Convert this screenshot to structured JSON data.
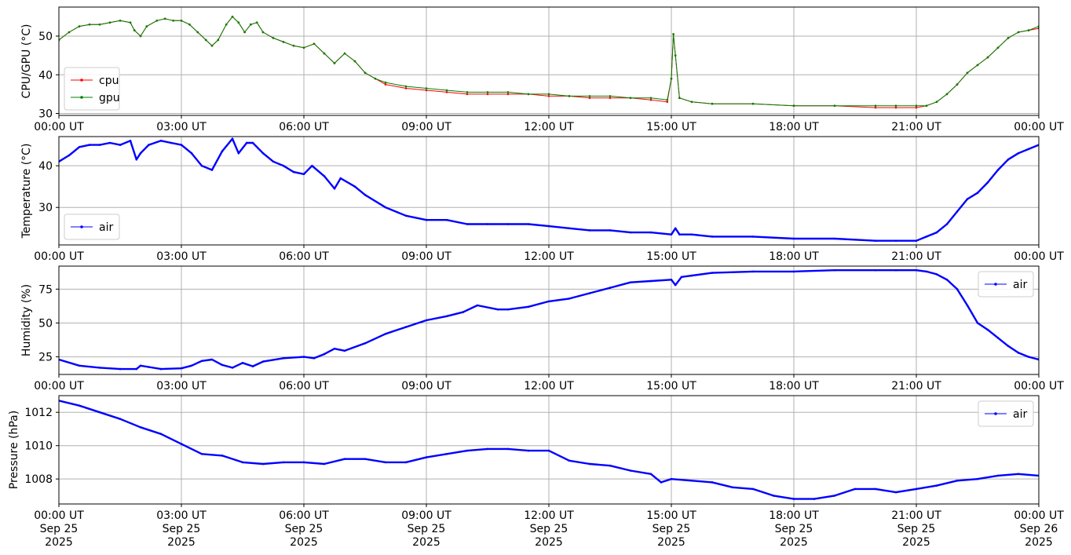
{
  "chart_data": [
    {
      "type": "line",
      "ylabel": "CPU/GPU (°C)",
      "ylim": [
        29.5,
        57.5
      ],
      "yticks": [
        30,
        40,
        50
      ],
      "xlim": [
        "2025-09-25T00:00Z",
        "2025-09-26T00:00Z"
      ],
      "xtick_labels": [
        "00:00 UT",
        "03:00 UT",
        "06:00 UT",
        "09:00 UT",
        "12:00 UT",
        "15:00 UT",
        "18:00 UT",
        "21:00 UT",
        "00:00 UT"
      ],
      "grid": true,
      "legend_position": "lower-left",
      "series": [
        {
          "name": "cpu",
          "color": "#ff0000",
          "x": [
            0,
            0.25,
            0.5,
            0.75,
            1,
            1.25,
            1.5,
            1.75,
            1.85,
            2,
            2.15,
            2.4,
            2.6,
            2.8,
            3,
            3.2,
            3.4,
            3.6,
            3.75,
            3.9,
            4.1,
            4.25,
            4.4,
            4.55,
            4.7,
            4.85,
            5,
            5.25,
            5.5,
            5.75,
            6,
            6.25,
            6.5,
            6.75,
            7,
            7.25,
            7.5,
            7.75,
            8,
            8.5,
            9,
            9.5,
            10,
            10.5,
            11,
            11.5,
            12,
            12.5,
            13,
            13.5,
            14,
            14.5,
            14.9,
            15,
            15.05,
            15.1,
            15.2,
            15.5,
            16,
            17,
            18,
            19,
            20,
            20.5,
            21,
            21.25,
            21.5,
            21.75,
            22,
            22.25,
            22.5,
            22.75,
            23,
            23.25,
            23.5,
            23.75,
            24
          ],
          "y": [
            49,
            51,
            52.5,
            53,
            53,
            53.5,
            54,
            53.5,
            51.5,
            50,
            52.5,
            54,
            54.5,
            54,
            54,
            53,
            51,
            49,
            47.5,
            49,
            53,
            55,
            53.5,
            51,
            53,
            53.5,
            51,
            49.5,
            48.5,
            47.5,
            47,
            48,
            45.5,
            43,
            45.5,
            43.5,
            40.5,
            39,
            37.5,
            36.5,
            36,
            35.5,
            35,
            35,
            35,
            35,
            34.5,
            34.5,
            34,
            34,
            34,
            33.5,
            33,
            39,
            50.5,
            45,
            34,
            33,
            32.5,
            32.5,
            32,
            32,
            31.5,
            31.5,
            31.5,
            32,
            33,
            35,
            37.5,
            40.5,
            42.5,
            44.5,
            47,
            49.5,
            51,
            51.5,
            52
          ]
        },
        {
          "name": "gpu",
          "color": "#008000",
          "x": [
            0,
            0.25,
            0.5,
            0.75,
            1,
            1.25,
            1.5,
            1.75,
            1.85,
            2,
            2.15,
            2.4,
            2.6,
            2.8,
            3,
            3.2,
            3.4,
            3.6,
            3.75,
            3.9,
            4.1,
            4.25,
            4.4,
            4.55,
            4.7,
            4.85,
            5,
            5.25,
            5.5,
            5.75,
            6,
            6.25,
            6.5,
            6.75,
            7,
            7.25,
            7.5,
            7.75,
            8,
            8.5,
            9,
            9.5,
            10,
            10.5,
            11,
            11.5,
            12,
            12.5,
            13,
            13.5,
            14,
            14.5,
            14.9,
            15,
            15.05,
            15.1,
            15.2,
            15.5,
            16,
            17,
            18,
            19,
            20,
            20.5,
            21,
            21.25,
            21.5,
            21.75,
            22,
            22.25,
            22.5,
            22.75,
            23,
            23.25,
            23.5,
            23.75,
            24
          ],
          "y": [
            49,
            51,
            52.5,
            53,
            53,
            53.5,
            54,
            53.5,
            51.5,
            50,
            52.5,
            54,
            54.5,
            54,
            54,
            53,
            51,
            49,
            47.5,
            49,
            53,
            55,
            53.5,
            51,
            53,
            53.5,
            51,
            49.5,
            48.5,
            47.5,
            47,
            48,
            45.5,
            43,
            45.5,
            43.5,
            40.5,
            39,
            38,
            37,
            36.5,
            36,
            35.5,
            35.5,
            35.5,
            35,
            35,
            34.5,
            34.5,
            34.5,
            34,
            34,
            33.5,
            39,
            50.5,
            45,
            34,
            33,
            32.5,
            32.5,
            32,
            32,
            32,
            32,
            32,
            32,
            33,
            35,
            37.5,
            40.5,
            42.5,
            44.5,
            47,
            49.5,
            51,
            51.5,
            52.5
          ]
        }
      ]
    },
    {
      "type": "line",
      "ylabel": "Temperature (°C)",
      "ylim": [
        21,
        47
      ],
      "yticks": [
        30,
        40
      ],
      "xlim": [
        "2025-09-25T00:00Z",
        "2025-09-26T00:00Z"
      ],
      "xtick_labels": [
        "00:00 UT",
        "03:00 UT",
        "06:00 UT",
        "09:00 UT",
        "12:00 UT",
        "15:00 UT",
        "18:00 UT",
        "21:00 UT",
        "00:00 UT"
      ],
      "grid": true,
      "legend_position": "lower-left",
      "series": [
        {
          "name": "air",
          "color": "#0000ff",
          "x": [
            0,
            0.25,
            0.5,
            0.75,
            1,
            1.25,
            1.5,
            1.75,
            1.9,
            2,
            2.2,
            2.5,
            2.75,
            3,
            3.25,
            3.5,
            3.75,
            4,
            4.25,
            4.4,
            4.6,
            4.75,
            5,
            5.25,
            5.5,
            5.75,
            6,
            6.2,
            6.5,
            6.75,
            6.9,
            7.25,
            7.5,
            8,
            8.5,
            9,
            9.5,
            10,
            10.5,
            11,
            11.5,
            12,
            12.5,
            13,
            13.5,
            14,
            14.5,
            15,
            15.1,
            15.2,
            15.5,
            16,
            17,
            18,
            19,
            20,
            20.5,
            21,
            21.25,
            21.5,
            21.75,
            22,
            22.25,
            22.5,
            22.75,
            23,
            23.25,
            23.5,
            23.75,
            24
          ],
          "y": [
            41,
            42.5,
            44.5,
            45,
            45,
            45.5,
            45,
            46,
            41.5,
            43,
            45,
            46,
            45.5,
            45,
            43,
            40,
            39,
            43.5,
            46.5,
            43,
            45.5,
            45.5,
            43,
            41,
            40,
            38.5,
            38,
            40,
            37.5,
            34.5,
            37,
            35,
            33,
            30,
            28,
            27,
            27,
            26,
            26,
            26,
            26,
            25.5,
            25,
            24.5,
            24.5,
            24,
            24,
            23.5,
            25,
            23.5,
            23.5,
            23,
            23,
            22.5,
            22.5,
            22,
            22,
            22,
            23,
            24,
            26,
            29,
            32,
            33.5,
            36,
            39,
            41.5,
            43,
            44,
            45
          ]
        }
      ]
    },
    {
      "type": "line",
      "ylabel": "Humidity (%)",
      "ylim": [
        12,
        92
      ],
      "yticks": [
        25,
        50,
        75
      ],
      "xlim": [
        "2025-09-25T00:00Z",
        "2025-09-26T00:00Z"
      ],
      "xtick_labels": [
        "00:00 UT",
        "03:00 UT",
        "06:00 UT",
        "09:00 UT",
        "12:00 UT",
        "15:00 UT",
        "18:00 UT",
        "21:00 UT",
        "00:00 UT"
      ],
      "grid": true,
      "legend_position": "upper-right",
      "series": [
        {
          "name": "air",
          "color": "#0000ff",
          "x": [
            0,
            0.5,
            1,
            1.5,
            1.9,
            2,
            2.2,
            2.5,
            3,
            3.25,
            3.5,
            3.75,
            4,
            4.25,
            4.5,
            4.75,
            5,
            5.5,
            6,
            6.25,
            6.5,
            6.75,
            7,
            7.5,
            8,
            8.5,
            9,
            9.5,
            9.9,
            10.25,
            10.75,
            11,
            11.5,
            12,
            12.5,
            13,
            13.5,
            14,
            14.5,
            15,
            15.1,
            15.25,
            15.5,
            16,
            17,
            18,
            19,
            20,
            20.5,
            21,
            21.25,
            21.5,
            21.75,
            22,
            22.25,
            22.5,
            22.75,
            23,
            23.25,
            23.5,
            23.75,
            24
          ],
          "y": [
            23,
            18.5,
            17,
            16,
            16,
            18.5,
            17.5,
            16,
            16.5,
            18.5,
            22,
            23,
            19,
            17,
            20.5,
            18,
            21.5,
            24,
            25,
            24,
            27,
            31,
            29.5,
            35,
            42,
            47,
            52,
            55,
            58,
            63,
            60,
            60,
            62,
            66,
            68,
            72,
            76,
            80,
            81,
            82,
            78,
            84,
            85,
            87,
            88,
            88,
            89,
            89,
            89,
            89,
            88,
            86,
            82,
            75,
            63,
            50,
            45,
            39,
            33,
            28,
            25,
            23
          ]
        }
      ]
    },
    {
      "type": "line",
      "ylabel": "Pressure (hPa)",
      "ylim": [
        1006.5,
        1013
      ],
      "yticks": [
        1008,
        1010,
        1012
      ],
      "xlim": [
        "2025-09-25T00:00Z",
        "2025-09-26T00:00Z"
      ],
      "xtick_labels": [
        "00:00 UT\nSep 25\n2025",
        "03:00 UT\nSep 25\n2025",
        "06:00 UT\nSep 25\n2025",
        "09:00 UT\nSep 25\n2025",
        "12:00 UT\nSep 25\n2025",
        "15:00 UT\nSep 25\n2025",
        "18:00 UT\nSep 25\n2025",
        "21:00 UT\nSep 25\n2025",
        "00:00 UT\nSep 26\n2025"
      ],
      "grid": true,
      "legend_position": "upper-right",
      "series": [
        {
          "name": "air",
          "color": "#0000ff",
          "x": [
            0,
            0.5,
            1,
            1.5,
            2,
            2.5,
            3,
            3.5,
            4,
            4.5,
            5,
            5.5,
            6,
            6.5,
            7,
            7.5,
            8,
            8.5,
            9,
            9.5,
            10,
            10.5,
            11,
            11.5,
            12,
            12.5,
            13,
            13.5,
            14,
            14.5,
            14.75,
            15,
            15.5,
            16,
            16.5,
            17,
            17.5,
            18,
            18.5,
            19,
            19.5,
            20,
            20.5,
            21,
            21.5,
            22,
            22.5,
            23,
            23.5,
            24
          ],
          "y": [
            1012.7,
            1012.4,
            1012,
            1011.6,
            1011.1,
            1010.7,
            1010.1,
            1009.5,
            1009.4,
            1009,
            1008.9,
            1009,
            1009,
            1008.9,
            1009.2,
            1009.2,
            1009,
            1009,
            1009.3,
            1009.5,
            1009.7,
            1009.8,
            1009.8,
            1009.7,
            1009.7,
            1009.1,
            1008.9,
            1008.8,
            1008.5,
            1008.3,
            1007.8,
            1008,
            1007.9,
            1007.8,
            1007.5,
            1007.4,
            1007,
            1006.8,
            1006.8,
            1007,
            1007.4,
            1007.4,
            1007.2,
            1007.4,
            1007.6,
            1007.9,
            1008,
            1008.2,
            1008.3,
            1008.2
          ]
        }
      ]
    }
  ]
}
